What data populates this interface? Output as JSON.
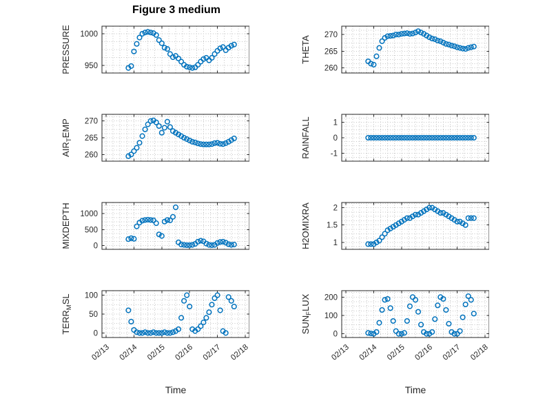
{
  "title": "Figure 3 medium",
  "xlabel": "Time",
  "chart_data": {
    "type": "scatter",
    "marker": {
      "shape": "circle-open",
      "color": "#0072BD",
      "radius": 3.3,
      "stroke_width": 1.5
    },
    "xlim": [
      12.85,
      18.15
    ],
    "x_ticks": {
      "values": [
        13,
        14,
        15,
        16,
        17,
        18
      ],
      "labels": [
        "02/13",
        "02/14",
        "02/15",
        "02/16",
        "02/17",
        "02/18"
      ]
    },
    "x_minor_step": 0.25,
    "grid": "dotted",
    "x": [
      13.8,
      13.9,
      14.0,
      14.1,
      14.2,
      14.3,
      14.4,
      14.5,
      14.6,
      14.7,
      14.8,
      14.9,
      15.0,
      15.1,
      15.2,
      15.3,
      15.4,
      15.5,
      15.6,
      15.7,
      15.8,
      15.9,
      16.0,
      16.1,
      16.2,
      16.3,
      16.4,
      16.5,
      16.6,
      16.7,
      16.8,
      16.9,
      17.0,
      17.1,
      17.2,
      17.3,
      17.4,
      17.5,
      17.6
    ],
    "subplots": [
      {
        "id": "pressure",
        "ylabel": "PRESSURE",
        "ylabel_parts": [
          {
            "t": "PRESSURE"
          }
        ],
        "ylim": [
          938,
          1012
        ],
        "yticks": [
          950,
          1000
        ],
        "yminor": 12.5,
        "show_xlabels": false,
        "y": [
          946,
          949,
          972,
          984,
          994,
          1000,
          1002,
          1003,
          1002,
          1001,
          998,
          990,
          985,
          978,
          976,
          968,
          963,
          965,
          961,
          956,
          951,
          948,
          947,
          946,
          947,
          951,
          956,
          960,
          962,
          958,
          962,
          968,
          973,
          977,
          979,
          974,
          978,
          981,
          983
        ]
      },
      {
        "id": "theta",
        "ylabel": "THETA",
        "ylabel_parts": [
          {
            "t": "THETA"
          }
        ],
        "ylim": [
          258.5,
          272.5
        ],
        "yticks": [
          260,
          265,
          270
        ],
        "yminor": 1.25,
        "show_xlabels": false,
        "y": [
          262,
          261.3,
          261,
          263.5,
          266,
          268,
          269,
          269.5,
          269.6,
          269.7,
          270,
          270,
          270.2,
          270.3,
          270.4,
          270.2,
          270.3,
          270.6,
          271,
          270.6,
          270.2,
          269.7,
          269.2,
          268.8,
          268.6,
          268.2,
          268,
          267.6,
          267.2,
          267,
          266.7,
          266.5,
          266.2,
          266,
          265.8,
          265.7,
          266,
          266.2,
          266.4
        ]
      },
      {
        "id": "air-temp",
        "ylabel": "AIR_TEMP",
        "ylabel_parts": [
          {
            "t": "AIR"
          },
          {
            "t": "T",
            "sub": true
          },
          {
            "t": "EMP"
          }
        ],
        "ylim": [
          258,
          272
        ],
        "yticks": [
          260,
          265,
          270
        ],
        "yminor": 1.25,
        "show_xlabels": false,
        "y": [
          259.5,
          260,
          261,
          262,
          263.5,
          265.5,
          267.5,
          269,
          270,
          270.2,
          269.6,
          268.5,
          266.5,
          268,
          269.8,
          268.2,
          267,
          266.5,
          266,
          265.5,
          265,
          264.6,
          264.2,
          263.8,
          263.6,
          263.3,
          263.1,
          263,
          263,
          263,
          263.1,
          263.4,
          263.5,
          263.2,
          263.1,
          263.4,
          263.8,
          264.3,
          264.8
        ]
      },
      {
        "id": "rainfall",
        "ylabel": "RAINFALL",
        "ylabel_parts": [
          {
            "t": "RAINFALL"
          }
        ],
        "ylim": [
          -1.5,
          1.5
        ],
        "yticks": [
          -1,
          0,
          1
        ],
        "yminor": 0.25,
        "show_xlabels": false,
        "y": [
          0,
          0,
          0,
          0,
          0,
          0,
          0,
          0,
          0,
          0,
          0,
          0,
          0,
          0,
          0,
          0,
          0,
          0,
          0,
          0,
          0,
          0,
          0,
          0,
          0,
          0,
          0,
          0,
          0,
          0,
          0,
          0,
          0,
          0,
          0,
          0,
          0,
          0,
          0
        ]
      },
      {
        "id": "mixdepth",
        "ylabel": "MIXDEPTH",
        "ylabel_parts": [
          {
            "t": "MIXDEPTH"
          }
        ],
        "ylim": [
          -120,
          1350
        ],
        "yticks": [
          0,
          500,
          1000
        ],
        "yminor": 125,
        "show_xlabels": false,
        "y": [
          200,
          230,
          210,
          600,
          720,
          780,
          800,
          810,
          800,
          790,
          700,
          350,
          300,
          750,
          800,
          790,
          900,
          1200,
          100,
          30,
          20,
          10,
          10,
          20,
          50,
          120,
          150,
          130,
          60,
          20,
          10,
          20,
          80,
          110,
          120,
          90,
          40,
          20,
          30
        ]
      },
      {
        "id": "h2omixra",
        "ylabel": "H2OMIXRA",
        "ylabel_parts": [
          {
            "t": "H2OMIXRA"
          }
        ],
        "ylim": [
          0.8,
          2.15
        ],
        "yticks": [
          1,
          1.5,
          2
        ],
        "yminor": 0.125,
        "show_xlabels": false,
        "y": [
          0.95,
          0.95,
          0.95,
          1.0,
          1.05,
          1.15,
          1.25,
          1.35,
          1.4,
          1.45,
          1.5,
          1.55,
          1.6,
          1.65,
          1.7,
          1.7,
          1.75,
          1.8,
          1.8,
          1.85,
          1.9,
          1.95,
          2.0,
          2.0,
          1.95,
          1.9,
          1.85,
          1.85,
          1.8,
          1.75,
          1.7,
          1.65,
          1.6,
          1.6,
          1.55,
          1.5,
          1.7,
          1.7,
          1.7
        ]
      },
      {
        "id": "terr-msl",
        "ylabel": "TERR_MSL",
        "ylabel_parts": [
          {
            "t": "TERR"
          },
          {
            "t": "M",
            "sub": true
          },
          {
            "t": "SL"
          }
        ],
        "ylim": [
          -12,
          112
        ],
        "yticks": [
          0,
          50,
          100
        ],
        "yminor": 12.5,
        "show_xlabels": true,
        "y": [
          60,
          30,
          8,
          2,
          0,
          0,
          2,
          0,
          0,
          2,
          0,
          0,
          0,
          2,
          0,
          0,
          2,
          5,
          10,
          40,
          85,
          100,
          70,
          10,
          5,
          10,
          18,
          28,
          40,
          55,
          75,
          92,
          100,
          60,
          5,
          0,
          95,
          85,
          70
        ]
      },
      {
        "id": "sun-flux",
        "ylabel": "SUN_FLUX",
        "ylabel_parts": [
          {
            "t": "SUN"
          },
          {
            "t": "F",
            "sub": true
          },
          {
            "t": "LUX"
          }
        ],
        "ylim": [
          -20,
          235
        ],
        "yticks": [
          0,
          100,
          200
        ],
        "yminor": 25,
        "show_xlabels": true,
        "y": [
          5,
          2,
          0,
          10,
          60,
          130,
          185,
          190,
          140,
          70,
          15,
          0,
          0,
          5,
          70,
          150,
          200,
          185,
          120,
          50,
          10,
          0,
          0,
          10,
          80,
          155,
          200,
          190,
          130,
          55,
          10,
          0,
          0,
          15,
          90,
          160,
          205,
          185,
          110
        ]
      }
    ]
  }
}
